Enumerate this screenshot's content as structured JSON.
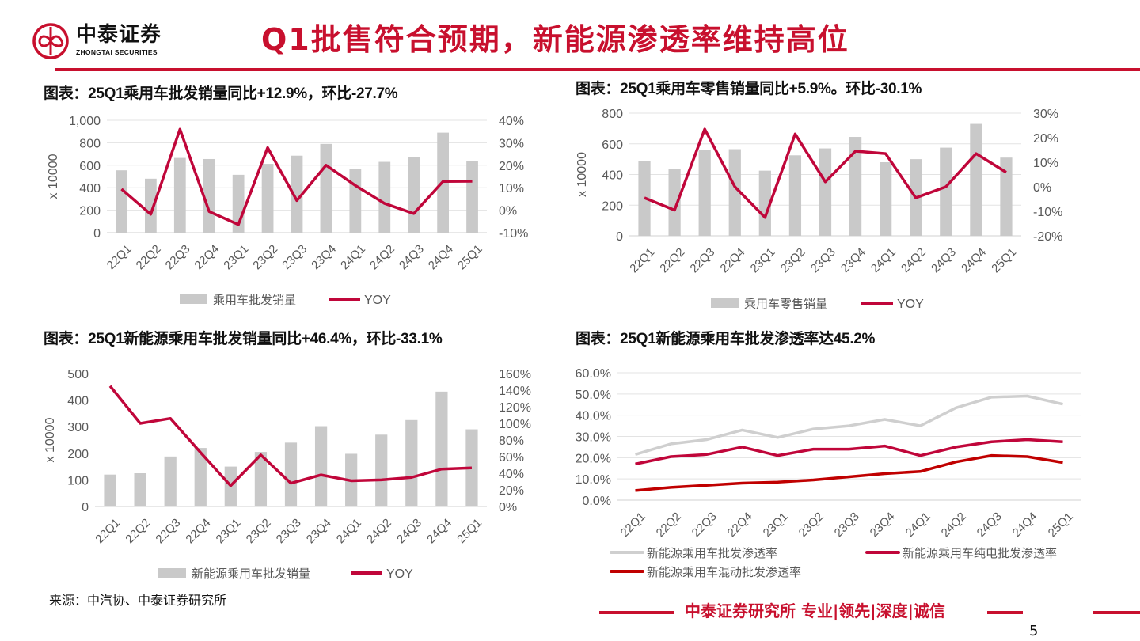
{
  "header": {
    "logo_cn": "中泰证券",
    "logo_en": "ZHONGTAI SECURITIES",
    "title": "Q1批售符合预期，新能源渗透率维持高位"
  },
  "colors": {
    "brand": "#c8102e",
    "bar": "#c9c9c9",
    "yoy": "#c0063a",
    "grid": "#e3e3e3",
    "nev_gray": "#cfcfcf",
    "bev": "#c0063a",
    "phev": "#c00000"
  },
  "chart_data": [
    {
      "type": "bar+line",
      "title": "图表：25Q1乘用车批发销量同比+12.9%，环比-27.7%",
      "ylabel": "x 10000",
      "categories": [
        "22Q1",
        "22Q2",
        "22Q3",
        "22Q4",
        "23Q1",
        "23Q2",
        "23Q3",
        "23Q4",
        "24Q1",
        "24Q2",
        "24Q3",
        "24Q4",
        "25Q1"
      ],
      "ylim": [
        0,
        1000
      ],
      "y2lim": [
        -10,
        40
      ],
      "yticks": [
        "0",
        "200",
        "400",
        "600",
        "800",
        "1,000"
      ],
      "y2ticks": [
        "-10%",
        "0%",
        "10%",
        "20%",
        "30%",
        "40%"
      ],
      "series": [
        {
          "name": "乘用车批发销量",
          "type": "bar",
          "axis": "left",
          "values": [
            555,
            480,
            665,
            655,
            515,
            612,
            685,
            790,
            570,
            630,
            670,
            890,
            640
          ]
        },
        {
          "name": "YOY",
          "type": "line",
          "axis": "right",
          "values": [
            9.4,
            -1.8,
            36,
            -0.6,
            -6.4,
            27.8,
            4.3,
            20,
            11,
            3,
            -1.5,
            12.8,
            12.9
          ]
        }
      ],
      "grid": true,
      "legend": "bottom"
    },
    {
      "type": "bar+line",
      "title": "图表：25Q1乘用车零售销量同比+5.9%。环比-30.1%",
      "ylabel": "x 10000",
      "categories": [
        "22Q1",
        "22Q2",
        "22Q3",
        "22Q4",
        "23Q1",
        "23Q2",
        "23Q3",
        "23Q4",
        "24Q1",
        "24Q2",
        "24Q3",
        "24Q4",
        "25Q1"
      ],
      "ylim": [
        0,
        800
      ],
      "y2lim": [
        -20,
        30
      ],
      "yticks": [
        "0",
        "200",
        "400",
        "600",
        "800"
      ],
      "y2ticks": [
        "-20%",
        "-10%",
        "0%",
        "10%",
        "20%",
        "30%"
      ],
      "series": [
        {
          "name": "乘用车零售销量",
          "type": "bar",
          "axis": "left",
          "values": [
            490,
            435,
            560,
            565,
            425,
            525,
            570,
            645,
            480,
            500,
            575,
            730,
            510
          ]
        },
        {
          "name": "YOY",
          "type": "line",
          "axis": "right",
          "values": [
            -4.5,
            -9.5,
            23.5,
            0,
            -12.5,
            21.5,
            2,
            14.5,
            13.5,
            -4.5,
            0,
            13.5,
            5.9
          ]
        }
      ],
      "grid": true,
      "legend": "bottom"
    },
    {
      "type": "bar+line",
      "title": "图表：25Q1新能源乘用车批发销量同比+46.4%，环比-33.1%",
      "ylabel": "x 10000",
      "categories": [
        "22Q1",
        "22Q2",
        "22Q3",
        "22Q4",
        "23Q1",
        "23Q2",
        "23Q3",
        "23Q4",
        "24Q1",
        "24Q2",
        "24Q3",
        "24Q4",
        "25Q1"
      ],
      "ylim": [
        0,
        500
      ],
      "y2lim": [
        0,
        160
      ],
      "yticks": [
        "0",
        "100",
        "200",
        "300",
        "400",
        "500"
      ],
      "y2ticks": [
        "0%",
        "20%",
        "40%",
        "60%",
        "80%",
        "100%",
        "120%",
        "140%",
        "160%"
      ],
      "series": [
        {
          "name": "新能源乘用车批发销量",
          "type": "bar",
          "axis": "left",
          "values": [
            120,
            125,
            188,
            220,
            150,
            205,
            240,
            302,
            198,
            270,
            325,
            432,
            290
          ]
        },
        {
          "name": "YOY",
          "type": "line",
          "axis": "right",
          "values": [
            145,
            100,
            106,
            65,
            25,
            62,
            28,
            38,
            31,
            32,
            35,
            45,
            46.4
          ]
        }
      ],
      "grid": false,
      "legend": "bottom"
    },
    {
      "type": "line",
      "title": "图表：25Q1新能源乘用车批发渗透率达45.2%",
      "categories": [
        "22Q1",
        "22Q2",
        "22Q3",
        "22Q4",
        "23Q1",
        "23Q2",
        "23Q3",
        "23Q4",
        "24Q1",
        "24Q2",
        "24Q3",
        "24Q4",
        "25Q1"
      ],
      "ylim": [
        0,
        60
      ],
      "yticks": [
        "0.0%",
        "10.0%",
        "20.0%",
        "30.0%",
        "40.0%",
        "50.0%",
        "60.0%"
      ],
      "series": [
        {
          "name": "新能源乘用车批发渗透率",
          "values": [
            21.5,
            26.5,
            28.5,
            33,
            29.5,
            33.5,
            35,
            38,
            35,
            43.5,
            48.5,
            49,
            45.2
          ]
        },
        {
          "name": "新能源乘用车纯电批发渗透率",
          "values": [
            17,
            20.5,
            21.5,
            25,
            21,
            24,
            24,
            25.5,
            21,
            25,
            27.5,
            28.5,
            27.5
          ]
        },
        {
          "name": "新能源乘用车混动批发渗透率",
          "values": [
            4.5,
            6,
            7,
            8,
            8.5,
            9.5,
            11,
            12.5,
            13.5,
            18,
            21,
            20.5,
            17.7
          ]
        }
      ],
      "grid": true,
      "legend": "bottom"
    }
  ],
  "footer": {
    "source": "来源：中汽协、中泰证券研究所",
    "slogan": "中泰证券研究所 专业|领先|深度|诚信",
    "page": "5"
  }
}
